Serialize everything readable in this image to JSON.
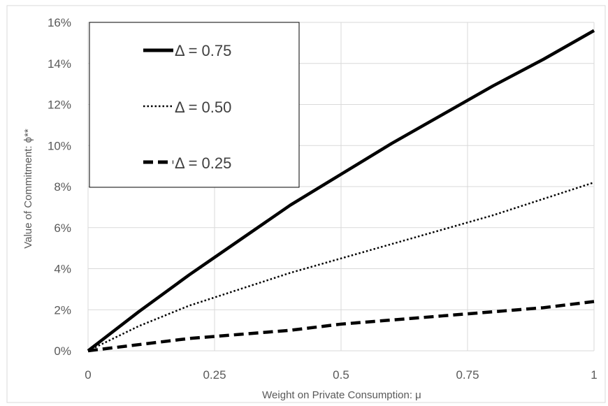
{
  "chart_data": {
    "type": "line",
    "xlabel": "Weight on Private Consumption: μ",
    "ylabel": "Value of Commitment: ϕ**",
    "xlim": [
      0,
      1
    ],
    "ylim": [
      0,
      16
    ],
    "x_ticks": [
      "0",
      "0.25",
      "0.5",
      "0.75",
      "1"
    ],
    "y_ticks": [
      "0%",
      "2%",
      "4%",
      "6%",
      "8%",
      "10%",
      "12%",
      "14%",
      "16%"
    ],
    "grid": true,
    "legend_position": "top-left",
    "x": [
      0,
      0.1,
      0.2,
      0.3,
      0.4,
      0.5,
      0.6,
      0.7,
      0.8,
      0.9,
      1.0
    ],
    "series": [
      {
        "name": "Δ = 0.75",
        "style": "solid",
        "color": "#000000",
        "values": [
          0,
          1.9,
          3.7,
          5.4,
          7.1,
          8.6,
          10.1,
          11.5,
          12.9,
          14.2,
          15.6
        ]
      },
      {
        "name": "Δ = 0.50",
        "style": "dotted",
        "color": "#000000",
        "values": [
          0,
          1.2,
          2.2,
          3.0,
          3.8,
          4.5,
          5.2,
          5.9,
          6.6,
          7.4,
          8.2
        ]
      },
      {
        "name": "Δ = 0.25",
        "style": "dashed",
        "color": "#000000",
        "values": [
          0,
          0.3,
          0.6,
          0.8,
          1.0,
          1.3,
          1.5,
          1.7,
          1.9,
          2.1,
          2.4
        ]
      }
    ]
  }
}
